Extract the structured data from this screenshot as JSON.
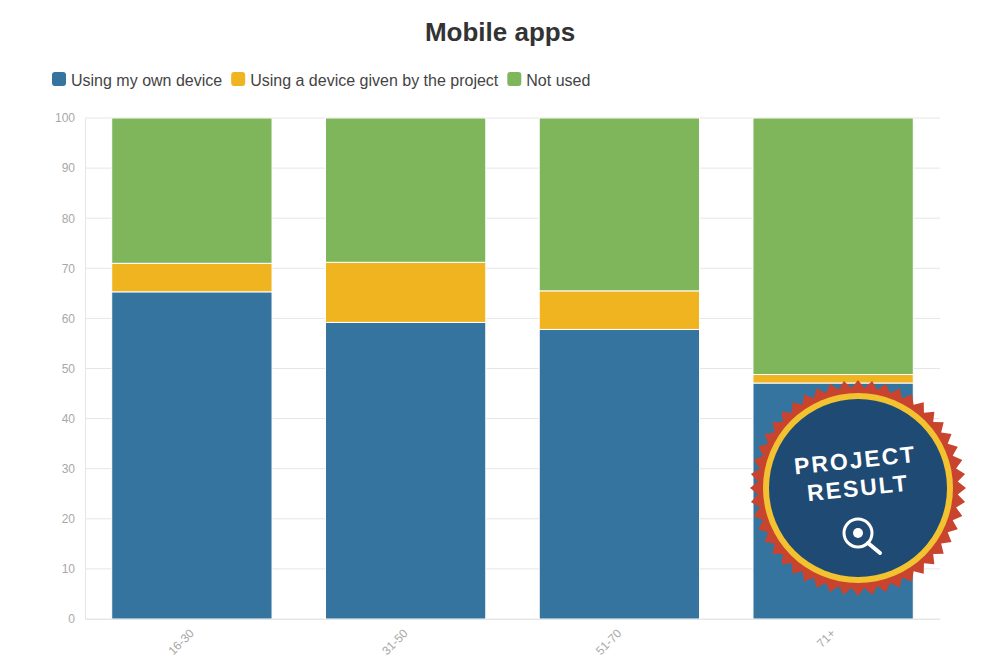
{
  "chart_data": {
    "type": "bar",
    "title": "Mobile apps",
    "categories": [
      "16-30",
      "31-50",
      "51-70",
      "71+"
    ],
    "series": [
      {
        "name": "Using my own device",
        "color": "#35749f",
        "values": [
          65.3,
          59.2,
          57.8,
          47.1
        ]
      },
      {
        "name": "Using a device given by the project",
        "color": "#efb420",
        "values": [
          5.7,
          12.0,
          7.7,
          1.7
        ]
      },
      {
        "name": "Not used",
        "color": "#7fb55b",
        "values": [
          29.0,
          28.8,
          34.5,
          51.2
        ]
      }
    ],
    "annotations": [
      "PROJECT RESULT"
    ],
    "ylim": [
      0,
      100
    ],
    "yticks": [
      0,
      10,
      20,
      30,
      40,
      50,
      60,
      70,
      80,
      90,
      100
    ],
    "stacked": true,
    "grid": true,
    "legend": "top-left"
  }
}
